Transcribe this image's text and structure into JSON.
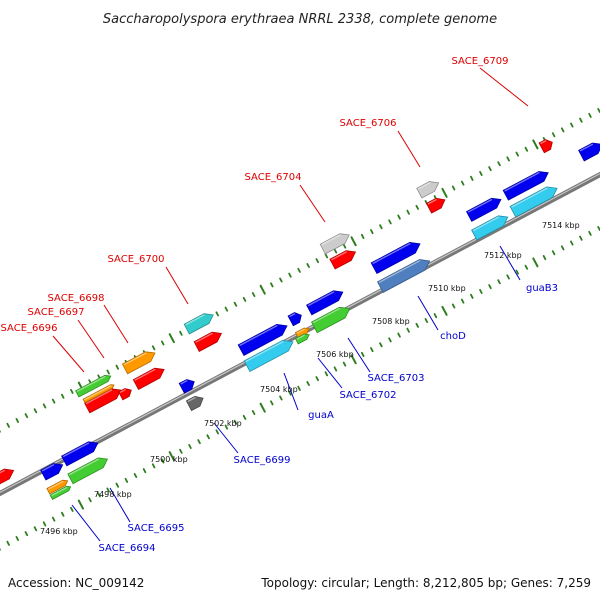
{
  "title": "Saccharopolyspora erythraea NRRL 2338, complete genome",
  "footer": {
    "accession": "Accession: NC_009142",
    "summary": "Topology: circular; Length: 8,212,805 bp; Genes: 7,259"
  },
  "colors": {
    "backbone": "#888888",
    "tick": "#2e7d1f",
    "label_forward": "#dd0000",
    "label_reverse": "#0000cc"
  },
  "ticks": [
    {
      "label": "7496 kbp"
    },
    {
      "label": "7498 kbp"
    },
    {
      "label": "7500 kbp"
    },
    {
      "label": "7502 kbp"
    },
    {
      "label": "7504 kbp"
    },
    {
      "label": "7506 kbp"
    },
    {
      "label": "7508 kbp"
    },
    {
      "label": "7510 kbp"
    },
    {
      "label": "7512 kbp"
    },
    {
      "label": "7514 kbp"
    }
  ],
  "gene_labels": [
    {
      "text": "SACE_6709",
      "strand": "forward"
    },
    {
      "text": "SACE_6706",
      "strand": "forward"
    },
    {
      "text": "SACE_6704",
      "strand": "forward"
    },
    {
      "text": "SACE_6700",
      "strand": "forward"
    },
    {
      "text": "SACE_6698",
      "strand": "forward"
    },
    {
      "text": "SACE_6697",
      "strand": "forward"
    },
    {
      "text": "SACE_6696",
      "strand": "forward"
    },
    {
      "text": "SACE_6699",
      "strand": "reverse"
    },
    {
      "text": "guaA",
      "strand": "reverse"
    },
    {
      "text": "SACE_6702",
      "strand": "reverse"
    },
    {
      "text": "SACE_6703",
      "strand": "reverse"
    },
    {
      "text": "choD",
      "strand": "reverse"
    },
    {
      "text": "guaB3",
      "strand": "reverse"
    },
    {
      "text": "SACE_6695",
      "strand": "reverse"
    },
    {
      "text": "SACE_6694",
      "strand": "reverse"
    }
  ],
  "features": [
    {
      "name": "feature-forward-left-edge",
      "color": "#ff0000"
    },
    {
      "name": "feature-sace-6696-cds",
      "color": "#ff0000"
    },
    {
      "name": "feature-sace-6696-gene",
      "color": "#44cc33"
    },
    {
      "name": "feature-sace-6697-gene",
      "color": "#ff9900"
    },
    {
      "name": "feature-sace-6697-cds",
      "color": "#ff0000"
    },
    {
      "name": "feature-sace-6698-gene",
      "color": "#ff9900"
    },
    {
      "name": "feature-sace-6698-cds",
      "color": "#ff0000"
    },
    {
      "name": "feature-sace-6700-gene",
      "color": "#33cccc"
    },
    {
      "name": "feature-sace-6700-cds",
      "color": "#ff0000"
    },
    {
      "name": "feature-sace-6704-gene",
      "color": "#cccccc"
    },
    {
      "name": "feature-sace-6704-cds",
      "color": "#ff0000"
    },
    {
      "name": "feature-sace-6706-gene",
      "color": "#cccccc"
    },
    {
      "name": "feature-sace-6706-cds",
      "color": "#ff0000"
    },
    {
      "name": "feature-sace-6709-cds",
      "color": "#ff0000"
    },
    {
      "name": "feature-sace-6694-gene",
      "color": "#0000ee"
    },
    {
      "name": "feature-sace-6694-cds-orange",
      "color": "#ff9900"
    },
    {
      "name": "feature-sace-6694-cds-green",
      "color": "#44cc33"
    },
    {
      "name": "feature-sace-6695-gene",
      "color": "#0000ee"
    },
    {
      "name": "feature-sace-6695-cds",
      "color": "#44cc33"
    },
    {
      "name": "feature-sace-6699-gene",
      "color": "#0000ee"
    },
    {
      "name": "feature-sace-6699-cds",
      "color": "#666666"
    },
    {
      "name": "feature-guaa-gene",
      "color": "#0000ee"
    },
    {
      "name": "feature-guaa-cds",
      "color": "#33ccee"
    },
    {
      "name": "feature-sace-6702-gene",
      "color": "#0000ee"
    },
    {
      "name": "feature-sace-6702-cds-orange",
      "color": "#ff9900"
    },
    {
      "name": "feature-sace-6702-cds-green",
      "color": "#44cc33"
    },
    {
      "name": "feature-sace-6703-gene",
      "color": "#0000ee"
    },
    {
      "name": "feature-sace-6703-cds",
      "color": "#44cc33"
    },
    {
      "name": "feature-chod-gene",
      "color": "#0000ee"
    },
    {
      "name": "feature-chod-cds",
      "color": "#4f7fbf"
    },
    {
      "name": "feature-guab3-gene-a",
      "color": "#0000ee"
    },
    {
      "name": "feature-guab3-cds-a",
      "color": "#33ccee"
    },
    {
      "name": "feature-guab3-gene-b",
      "color": "#0000ee"
    },
    {
      "name": "feature-guab3-cds-b",
      "color": "#33ccee"
    },
    {
      "name": "feature-reverse-right-edge",
      "color": "#0000ee"
    }
  ]
}
